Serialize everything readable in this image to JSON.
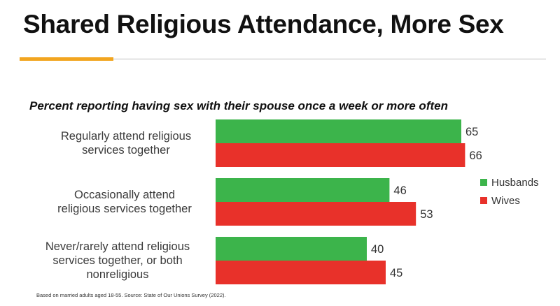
{
  "slide": {
    "title": "Shared Religious Attendance, More Sex",
    "footnote": "Based on married adults aged 18-55. Source: State of Our Unions Survey (2022).",
    "accent_color": "#f2a51f"
  },
  "chart_data": {
    "type": "bar",
    "orientation": "horizontal",
    "title": "Percent reporting having sex with their spouse once a week or more often",
    "categories": [
      [
        "Regularly attend religious",
        "services together"
      ],
      [
        "Occasionally attend",
        "religious services together"
      ],
      [
        "Never/rarely attend religious",
        "services together, or both",
        "nonreligious"
      ]
    ],
    "series": [
      {
        "name": "Husbands",
        "color": "#3cb44b",
        "values": [
          65,
          46,
          40
        ]
      },
      {
        "name": "Wives",
        "color": "#e8312a",
        "values": [
          66,
          53,
          45
        ]
      }
    ],
    "xlim": [
      0,
      100
    ],
    "grid": false,
    "legend": "right"
  }
}
